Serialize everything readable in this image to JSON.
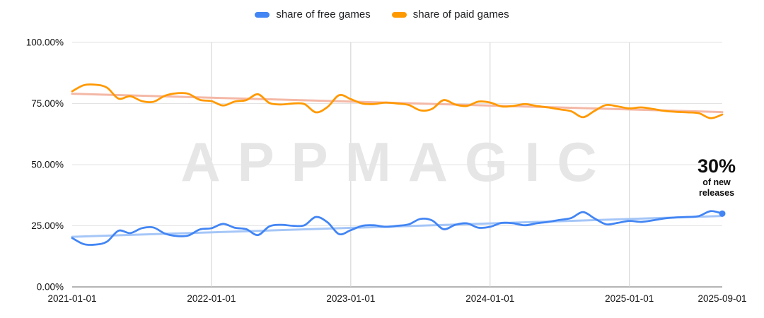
{
  "legend": {
    "items": [
      {
        "label": "share of free games",
        "color": "#4285f4"
      },
      {
        "label": "share of paid games",
        "color": "#ff9900"
      }
    ]
  },
  "watermark": "APPMAGIC",
  "annotation": {
    "value": "30%",
    "line1": "of new",
    "line2": "releases"
  },
  "chart_data": {
    "type": "line",
    "title": "",
    "xlabel": "",
    "ylabel": "",
    "ylim": [
      0,
      100
    ],
    "grid": true,
    "legend_position": "top",
    "y_ticks": [
      "0.00%",
      "25.00%",
      "50.00%",
      "75.00%",
      "100.00%"
    ],
    "x_tick_labels": [
      "2021-01-01",
      "2022-01-01",
      "2023-01-01",
      "2024-01-01",
      "2025-01-01",
      "2025-09-01"
    ],
    "x_tick_indices": [
      0,
      12,
      24,
      36,
      48,
      56
    ],
    "x": [
      "2021-01",
      "2021-02",
      "2021-03",
      "2021-04",
      "2021-05",
      "2021-06",
      "2021-07",
      "2021-08",
      "2021-09",
      "2021-10",
      "2021-11",
      "2021-12",
      "2022-01",
      "2022-02",
      "2022-03",
      "2022-04",
      "2022-05",
      "2022-06",
      "2022-07",
      "2022-08",
      "2022-09",
      "2022-10",
      "2022-11",
      "2022-12",
      "2023-01",
      "2023-02",
      "2023-03",
      "2023-04",
      "2023-05",
      "2023-06",
      "2023-07",
      "2023-08",
      "2023-09",
      "2023-10",
      "2023-11",
      "2023-12",
      "2024-01",
      "2024-02",
      "2024-03",
      "2024-04",
      "2024-05",
      "2024-06",
      "2024-07",
      "2024-08",
      "2024-09",
      "2024-10",
      "2024-11",
      "2024-12",
      "2025-01",
      "2025-02",
      "2025-03",
      "2025-04",
      "2025-05",
      "2025-06",
      "2025-07",
      "2025-08",
      "2025-09"
    ],
    "series": [
      {
        "name": "share of free games",
        "color": "#4285f4",
        "trend": false,
        "width": 2.75,
        "values": [
          20.0,
          17.5,
          17.3,
          18.5,
          23.0,
          22.0,
          24.0,
          24.3,
          21.8,
          20.8,
          21.0,
          23.5,
          24.0,
          25.8,
          24.2,
          23.6,
          21.2,
          24.8,
          25.4,
          25.0,
          25.2,
          28.6,
          26.4,
          21.6,
          23.2,
          25.0,
          25.2,
          24.6,
          25.0,
          25.6,
          27.8,
          27.2,
          23.6,
          25.4,
          26.0,
          24.2,
          24.6,
          26.2,
          26.0,
          25.2,
          26.0,
          26.6,
          27.4,
          28.2,
          30.6,
          28.0,
          25.6,
          26.2,
          27.0,
          26.6,
          27.2,
          28.0,
          28.4,
          28.6,
          29.0,
          31.0,
          30.0
        ]
      },
      {
        "name": "share of paid games",
        "color": "#ff9900",
        "trend": false,
        "width": 2.75,
        "values": [
          80.0,
          82.5,
          82.7,
          81.5,
          77.0,
          78.0,
          76.0,
          75.7,
          78.2,
          79.2,
          79.0,
          76.5,
          76.0,
          74.2,
          75.8,
          76.4,
          78.8,
          75.2,
          74.6,
          75.0,
          74.8,
          71.4,
          73.6,
          78.4,
          76.8,
          75.0,
          74.8,
          75.4,
          75.0,
          74.4,
          72.2,
          72.8,
          76.4,
          74.6,
          74.0,
          75.8,
          75.4,
          73.8,
          74.0,
          74.8,
          74.0,
          73.4,
          72.6,
          71.8,
          69.4,
          72.0,
          74.4,
          73.8,
          73.0,
          73.4,
          72.8,
          72.0,
          71.6,
          71.4,
          71.0,
          69.0,
          70.5
        ]
      },
      {
        "name": "free games trendline",
        "color": "#a5c6f7",
        "trend": true,
        "width": 3,
        "values": [
          20.5,
          29.0
        ]
      },
      {
        "name": "paid games trendline",
        "color": "#f4b8a6",
        "trend": true,
        "width": 3,
        "values": [
          79.0,
          71.5
        ]
      }
    ],
    "end_marker": {
      "series": "share of free games",
      "x": "2025-09",
      "value": 30.0,
      "label": "30% of new releases"
    }
  }
}
